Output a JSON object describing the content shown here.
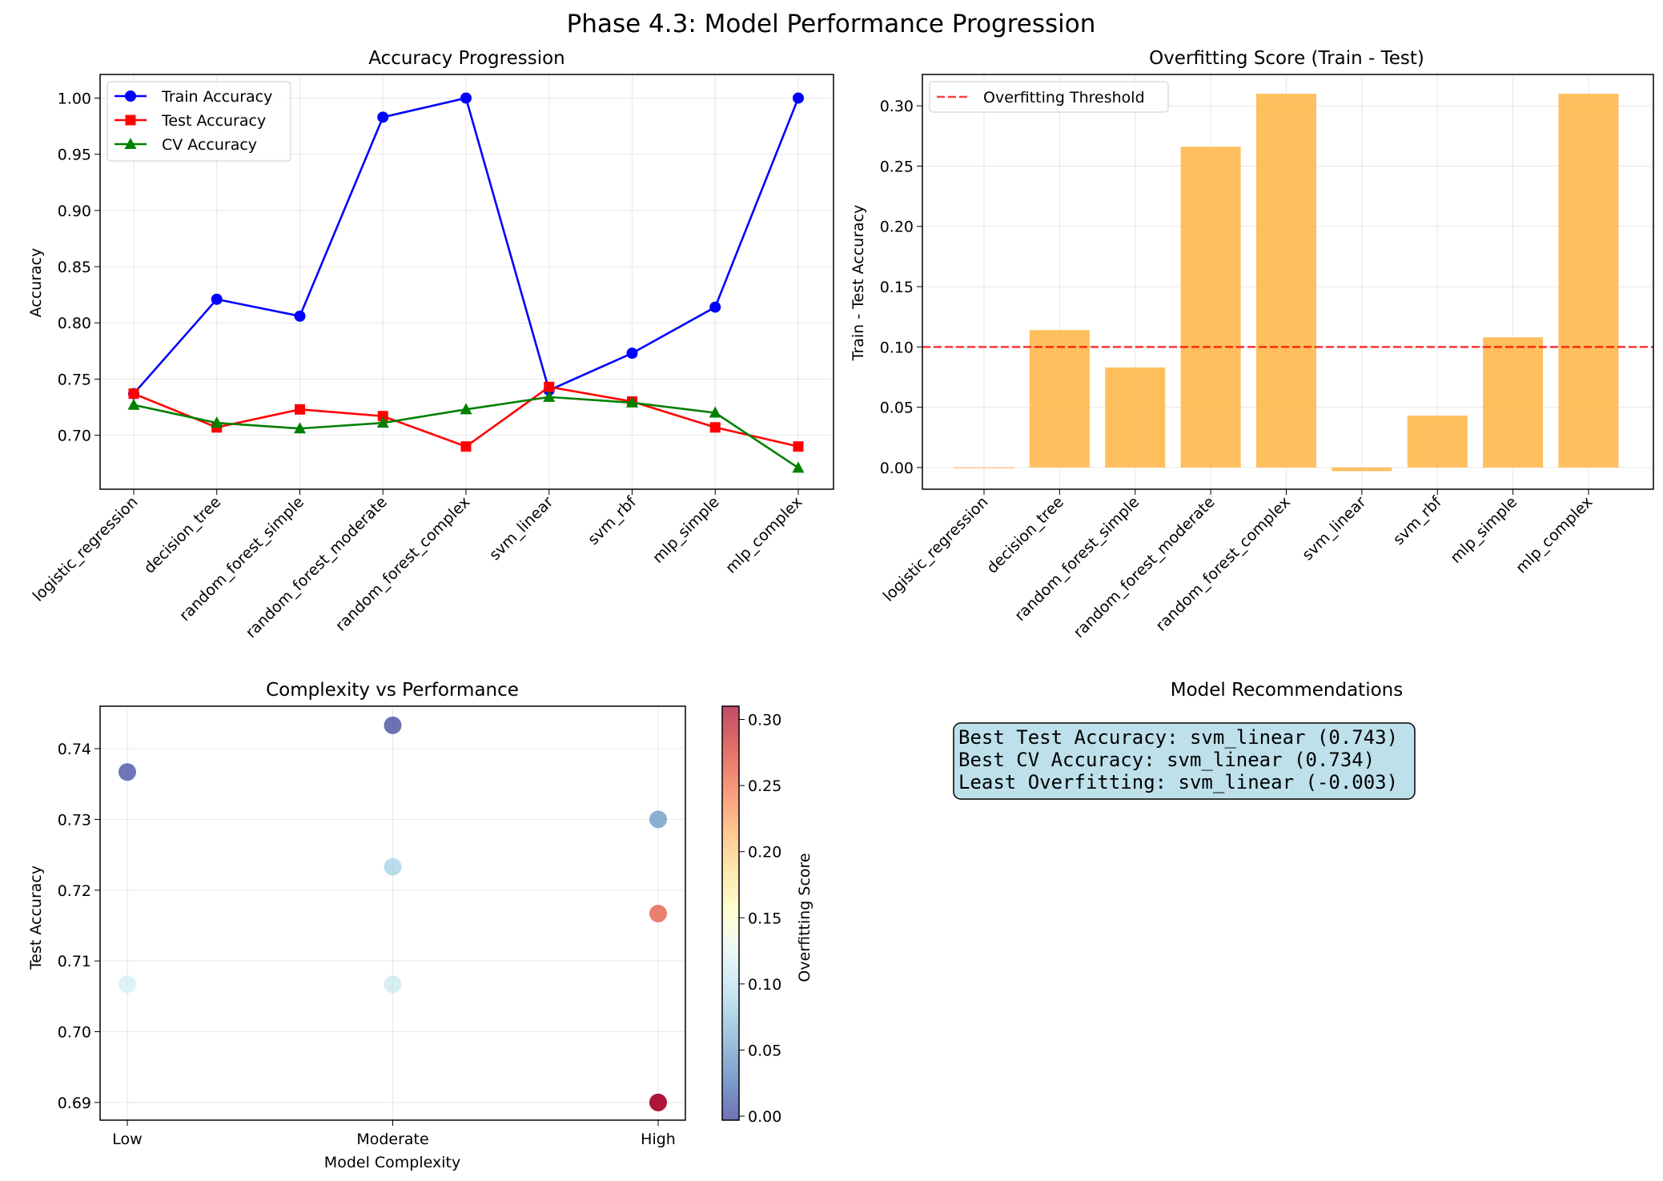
{
  "suptitle": "Phase 4.3: Model Performance Progression",
  "chart_data": [
    {
      "type": "line",
      "title": "Accuracy Progression",
      "xlabel": "",
      "ylabel": "Accuracy",
      "categories": [
        "logistic_regression",
        "decision_tree",
        "random_forest_simple",
        "random_forest_moderate",
        "random_forest_complex",
        "svm_linear",
        "svm_rbf",
        "mlp_simple",
        "mlp_complex"
      ],
      "ylim": [
        0.652,
        1.021
      ],
      "yticks": [
        "0.70",
        "0.75",
        "0.80",
        "0.85",
        "0.90",
        "0.95",
        "1.00"
      ],
      "grid": true,
      "legend": "top-left",
      "series": [
        {
          "name": "Train Accuracy",
          "color": "#0000ff",
          "marker": "circle",
          "values": [
            0.737,
            0.821,
            0.806,
            0.983,
            1.0,
            0.74,
            0.773,
            0.814,
            1.0
          ]
        },
        {
          "name": "Test Accuracy",
          "color": "#ff0000",
          "marker": "square",
          "values": [
            0.737,
            0.707,
            0.723,
            0.717,
            0.69,
            0.743,
            0.73,
            0.707,
            0.69
          ]
        },
        {
          "name": "CV Accuracy",
          "color": "#008000",
          "marker": "triangle",
          "values": [
            0.727,
            0.711,
            0.706,
            0.711,
            0.723,
            0.734,
            0.729,
            0.72,
            0.671
          ]
        }
      ]
    },
    {
      "type": "bar",
      "title": "Overfitting Score (Train - Test)",
      "xlabel": "",
      "ylabel": "Train - Test Accuracy",
      "categories": [
        "logistic_regression",
        "decision_tree",
        "random_forest_simple",
        "random_forest_moderate",
        "random_forest_complex",
        "svm_linear",
        "svm_rbf",
        "mlp_simple",
        "mlp_complex"
      ],
      "values": [
        0.0,
        0.114,
        0.083,
        0.266,
        0.31,
        -0.003,
        0.043,
        0.108,
        0.31
      ],
      "color": "#ffb84d",
      "ylim": [
        -0.018,
        0.326
      ],
      "yticks": [
        "0.00",
        "0.05",
        "0.10",
        "0.15",
        "0.20",
        "0.25",
        "0.30"
      ],
      "threshold": {
        "name": "Overfitting Threshold",
        "value": 0.1,
        "color": "#ff0000"
      },
      "grid": true,
      "legend": "top-left"
    },
    {
      "type": "scatter",
      "title": "Complexity vs Performance",
      "xlabel": "Model Complexity",
      "ylabel": "Test Accuracy",
      "categories": [
        "Low",
        "Moderate",
        "High"
      ],
      "ylim": [
        0.6875,
        0.746
      ],
      "yticks": [
        "0.69",
        "0.70",
        "0.71",
        "0.72",
        "0.73",
        "0.74"
      ],
      "grid": true,
      "colorbar": {
        "label": "Overfitting Score",
        "range": [
          -0.003,
          0.31
        ],
        "ticks": [
          "0.00",
          "0.05",
          "0.10",
          "0.15",
          "0.20",
          "0.25",
          "0.30"
        ]
      },
      "points": [
        {
          "x": "Low",
          "y": 0.7367,
          "c": 0.0
        },
        {
          "x": "Low",
          "y": 0.7067,
          "c": 0.114
        },
        {
          "x": "Moderate",
          "y": 0.7433,
          "c": -0.003
        },
        {
          "x": "Moderate",
          "y": 0.7233,
          "c": 0.083
        },
        {
          "x": "Moderate",
          "y": 0.7067,
          "c": 0.108
        },
        {
          "x": "High",
          "y": 0.73,
          "c": 0.043
        },
        {
          "x": "High",
          "y": 0.7167,
          "c": 0.266
        },
        {
          "x": "High",
          "y": 0.69,
          "c": 0.31
        },
        {
          "x": "High",
          "y": 0.69,
          "c": 0.31
        }
      ]
    }
  ],
  "recommendations": {
    "title": "Model Recommendations",
    "lines": [
      "Best Test Accuracy: svm_linear (0.743)",
      "Best CV Accuracy: svm_linear (0.734)",
      "Least Overfitting: svm_linear (-0.003)"
    ]
  }
}
